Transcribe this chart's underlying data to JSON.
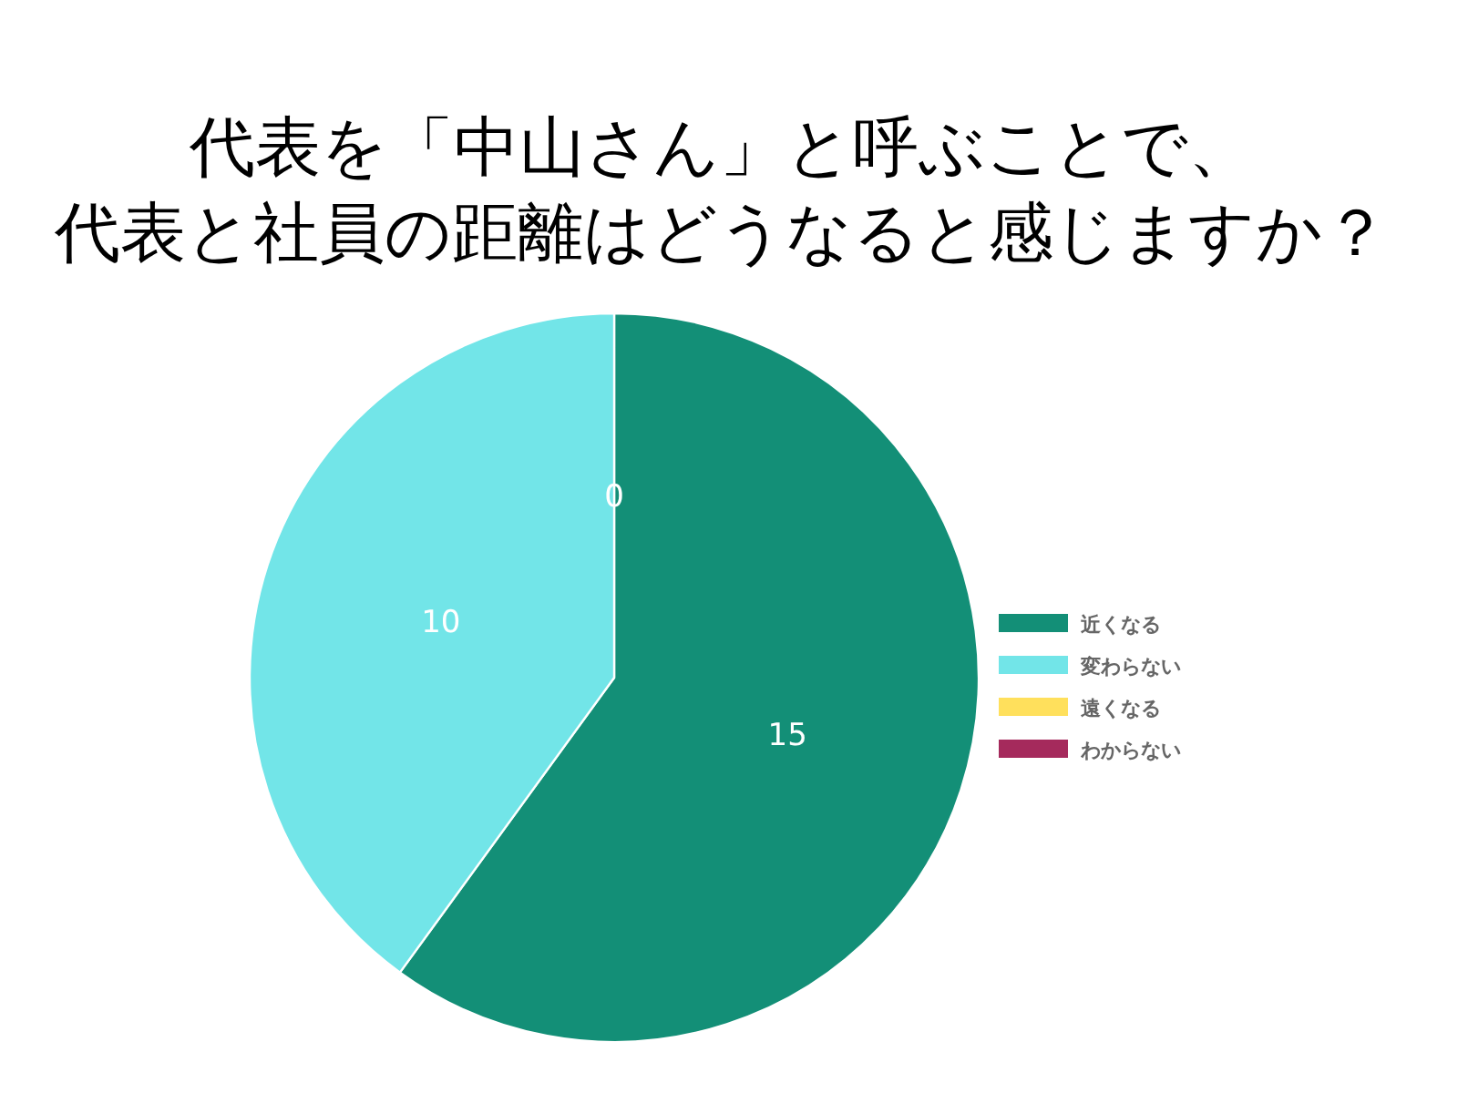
{
  "chart_data": {
    "type": "pie",
    "title": "代表を「中山さん」と呼ぶことで、代表と社員の距離はどうなると感じますか？",
    "categories": [
      "近くなる",
      "変わらない",
      "遠くなる",
      "わからない"
    ],
    "values": [
      15,
      10,
      0,
      0
    ],
    "colors": [
      "#138f77",
      "#72e5e8",
      "#ffe05c",
      "#a52a5c"
    ],
    "value_labels": [
      "15",
      "10",
      "0",
      null
    ],
    "legend": "right"
  }
}
